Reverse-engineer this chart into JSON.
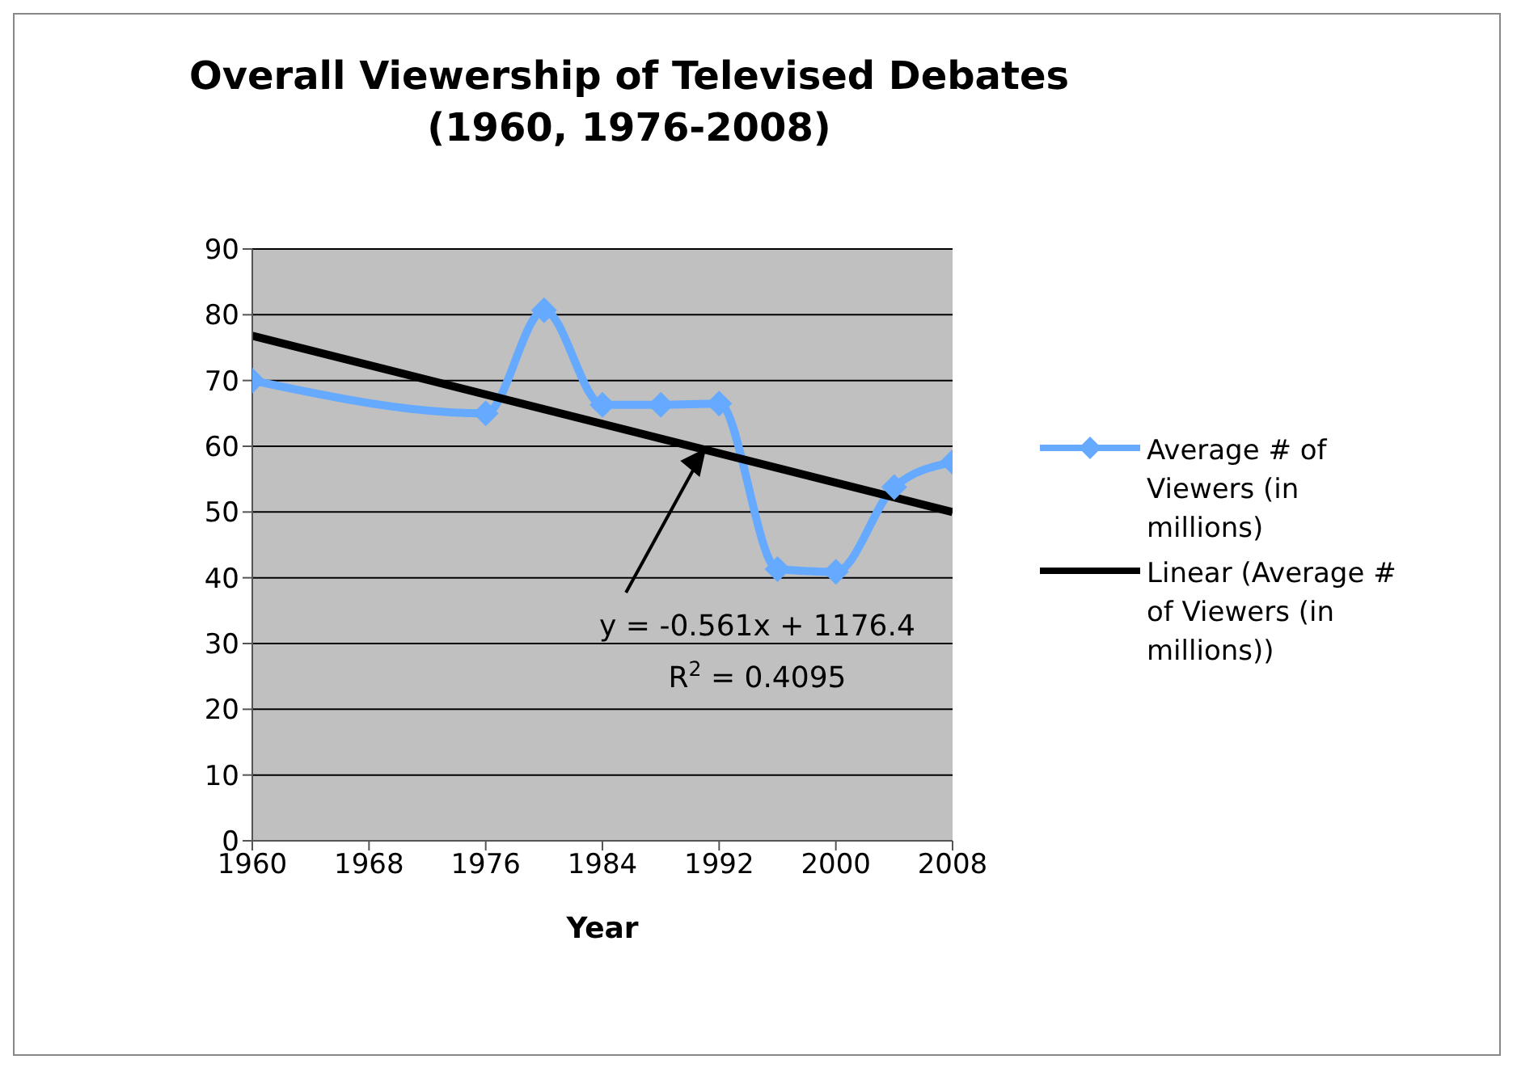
{
  "chart_data": {
    "type": "line",
    "title": "Overall Viewership of Televised Debates",
    "subtitle": "(1960, 1976-2008)",
    "xlabel": "Year",
    "xlim": [
      1960,
      2008
    ],
    "xticks": [
      1960,
      1968,
      1976,
      1984,
      1992,
      2000,
      2008
    ],
    "ylim": [
      0,
      90
    ],
    "yticks": [
      0,
      10,
      20,
      30,
      40,
      50,
      60,
      70,
      80,
      90
    ],
    "grid": "y",
    "legend": "right",
    "line_style": "solid",
    "series": [
      {
        "name": "Average # of Viewers (in millions)",
        "color": "#66aaff",
        "marker": "diamond",
        "x": [
          1960,
          1976,
          1980,
          1984,
          1988,
          1992,
          1996,
          2000,
          2004,
          2008
        ],
        "values": [
          70,
          65,
          80.7,
          66.3,
          66.3,
          66.5,
          41.3,
          40.9,
          53.8,
          57.6
        ]
      },
      {
        "name": "Linear (Average # of Viewers (in millions))",
        "color": "#000000",
        "marker": "none",
        "x": [
          1960,
          2008
        ],
        "values": [
          76.8,
          50.0
        ]
      }
    ],
    "annotations": [
      "y = -0.561x + 1176.4",
      "R$^{2}$ = 0.4095"
    ]
  }
}
